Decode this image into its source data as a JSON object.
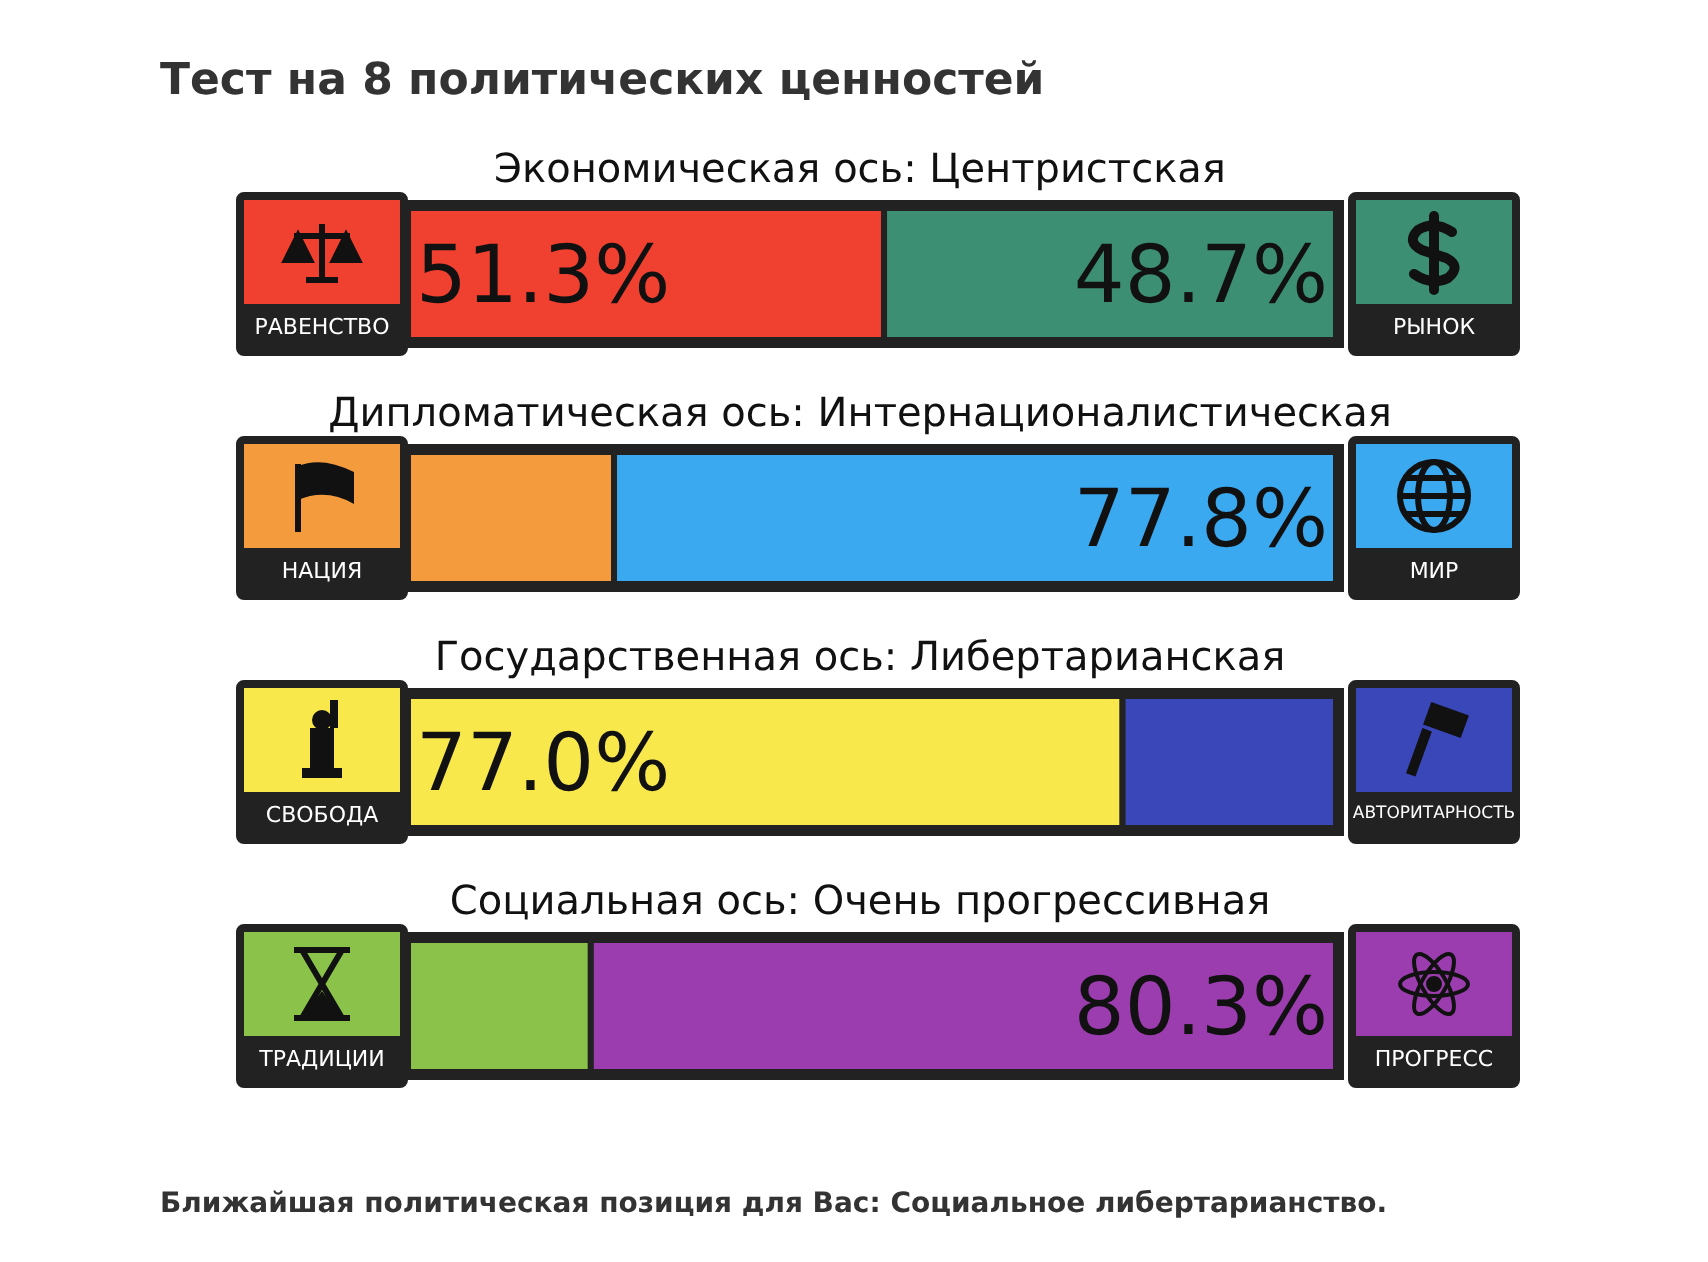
{
  "chart_data": [
    {
      "type": "bar",
      "orientation": "horizontal",
      "stacked": true,
      "title": "Экономическая ось: Центристская",
      "annotations": [
        "Тест на 8 политических ценностей"
      ],
      "categories": [
        null
      ],
      "xlim": [
        0,
        100
      ],
      "tick_labels": false,
      "series": [
        {
          "name": "РАВЕНСТВО",
          "color": "#f0402f",
          "values": [
            51.3
          ],
          "value_labels": [
            "51.3%"
          ]
        },
        {
          "name": "РЫНОК",
          "color": "#3c8f73",
          "values": [
            48.7
          ],
          "value_labels": [
            "48.7%"
          ]
        }
      ]
    },
    {
      "type": "bar",
      "orientation": "horizontal",
      "stacked": true,
      "title": "Дипломатическая ось: Интернационалистическая",
      "categories": [
        null
      ],
      "xlim": [
        0,
        100
      ],
      "tick_labels": false,
      "series": [
        {
          "name": "НАЦИЯ",
          "color": "#f39b3d",
          "values": [
            22.2
          ],
          "value_labels": [
            null
          ]
        },
        {
          "name": "МИР",
          "color": "#3aa9f0",
          "values": [
            77.8
          ],
          "value_labels": [
            "77.8%"
          ]
        }
      ]
    },
    {
      "type": "bar",
      "orientation": "horizontal",
      "stacked": true,
      "title": "Государственная ось: Либертарианская",
      "categories": [
        null
      ],
      "xlim": [
        0,
        100
      ],
      "tick_labels": false,
      "series": [
        {
          "name": "СВОБОДА",
          "color": "#f8e84b",
          "values": [
            77.0
          ],
          "value_labels": [
            "77.0%"
          ]
        },
        {
          "name": "АВТОРИТАРНОСТЬ",
          "color": "#3947b8",
          "values": [
            23.0
          ],
          "value_labels": [
            null
          ]
        }
      ]
    },
    {
      "type": "bar",
      "orientation": "horizontal",
      "stacked": true,
      "title": "Социальная ось: Очень прогрессивная",
      "annotations": [
        "Ближайшая политическая позиция для Вас: Социальное либертарианство."
      ],
      "categories": [
        null
      ],
      "xlim": [
        0,
        100
      ],
      "tick_labels": false,
      "series": [
        {
          "name": "ТРАДИЦИИ",
          "color": "#8bc34a",
          "values": [
            19.7
          ],
          "value_labels": [
            null
          ]
        },
        {
          "name": "ПРОГРЕСС",
          "color": "#9b3dae",
          "values": [
            80.3
          ],
          "value_labels": [
            "80.3%"
          ]
        }
      ]
    }
  ]
}
